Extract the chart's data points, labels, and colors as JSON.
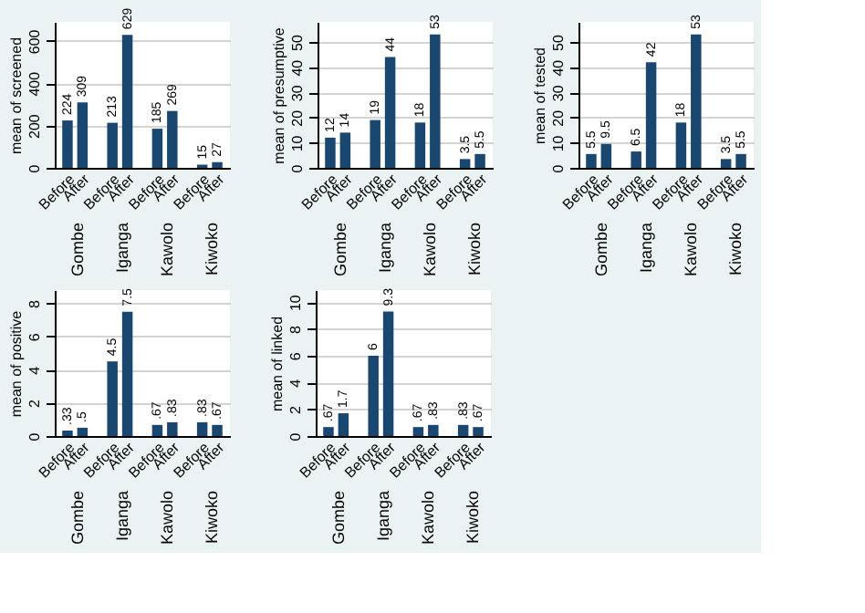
{
  "chart_data": [
    {
      "type": "bar",
      "ylabel": "mean of screened",
      "categories": [
        "Before",
        "After",
        "Before",
        "After",
        "Before",
        "After",
        "Before",
        "After"
      ],
      "values": [
        224,
        309,
        213,
        629,
        185,
        269,
        15,
        27
      ],
      "value_labels": [
        "224",
        "309",
        "213",
        "629",
        "185",
        "269",
        "15",
        "27"
      ],
      "color": "#1a476f",
      "ylim": [
        0,
        690
      ],
      "yticks": [
        0,
        200,
        400,
        600
      ],
      "grid": "y",
      "annotations": [
        "Gombe",
        "Iganga",
        "Kawolo",
        "Kiwoko"
      ]
    },
    {
      "type": "bar",
      "ylabel": "mean of presumptive",
      "categories": [
        "Before",
        "After",
        "Before",
        "After",
        "Before",
        "After",
        "Before",
        "After"
      ],
      "values": [
        12,
        14,
        19,
        44,
        18,
        53,
        3.5,
        5.5
      ],
      "value_labels": [
        "12",
        "14",
        "19",
        "44",
        "18",
        "53",
        "3.5",
        "5.5"
      ],
      "color": "#1a476f",
      "ylim": [
        0,
        58
      ],
      "yticks": [
        0,
        10,
        20,
        30,
        40,
        50
      ],
      "grid": "y",
      "annotations": [
        "Gombe",
        "Iganga",
        "Kawolo",
        "Kiwoko"
      ]
    },
    {
      "type": "bar",
      "ylabel": "mean of tested",
      "categories": [
        "Before",
        "After",
        "Before",
        "After",
        "Before",
        "After",
        "Before",
        "After"
      ],
      "values": [
        5.5,
        9.5,
        6.5,
        42,
        18,
        53,
        3.5,
        5.5
      ],
      "value_labels": [
        "5.5",
        "9.5",
        "6.5",
        "42",
        "18",
        "53",
        "3.5",
        "5.5"
      ],
      "color": "#1a476f",
      "ylim": [
        0,
        58
      ],
      "yticks": [
        0,
        10,
        20,
        30,
        40,
        50
      ],
      "grid": "y",
      "annotations": [
        "Gombe",
        "Iganga",
        "Kawolo",
        "Kiwoko"
      ]
    },
    {
      "type": "bar",
      "ylabel": "mean of positive",
      "categories": [
        "Before",
        "After",
        "Before",
        "After",
        "Before",
        "After",
        "Before",
        "After"
      ],
      "values": [
        0.33,
        0.5,
        4.5,
        7.5,
        0.67,
        0.83,
        0.83,
        0.67
      ],
      "value_labels": [
        ".33",
        ".5",
        "4.5",
        "7.5",
        ".67",
        ".83",
        ".83",
        ".67"
      ],
      "color": "#1a476f",
      "ylim": [
        0,
        8.8
      ],
      "yticks": [
        0,
        2,
        4,
        6,
        8
      ],
      "grid": "y",
      "annotations": [
        "Gombe",
        "Iganga",
        "Kawolo",
        "Kiwoko"
      ]
    },
    {
      "type": "bar",
      "ylabel": "mean of linked",
      "categories": [
        "Before",
        "After",
        "Before",
        "After",
        "Before",
        "After",
        "Before",
        "After"
      ],
      "values": [
        0.67,
        1.7,
        6,
        9.3,
        0.67,
        0.83,
        0.83,
        0.67
      ],
      "value_labels": [
        ".67",
        "1.7",
        "6",
        "9.3",
        ".67",
        ".83",
        ".83",
        ".67"
      ],
      "color": "#1a476f",
      "ylim": [
        0,
        10.9
      ],
      "yticks": [
        0,
        2,
        4,
        6,
        8,
        10
      ],
      "grid": "y",
      "annotations": [
        "Gombe",
        "Iganga",
        "Kawolo",
        "Kiwoko"
      ]
    }
  ]
}
